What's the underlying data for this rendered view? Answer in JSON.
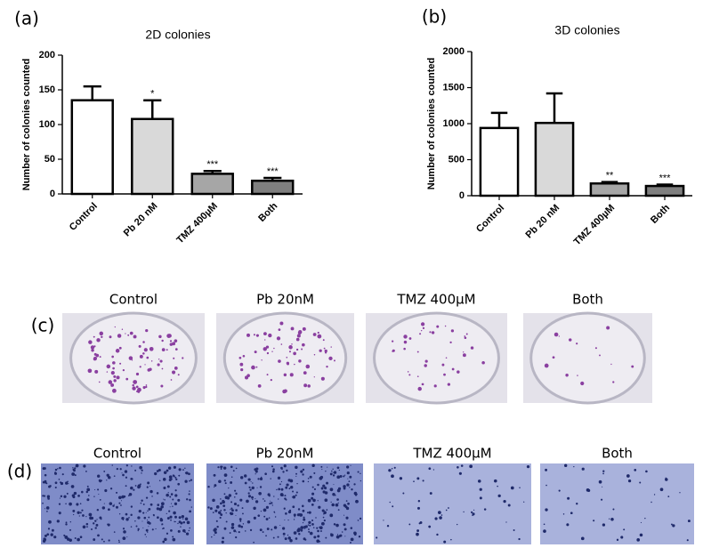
{
  "chart_data": [
    {
      "type": "bar",
      "label": "(a)",
      "title": "2D colonies",
      "y_label": "Number of colonies counted",
      "categories": [
        "Control",
        "Pb 20 nM",
        "TMZ 400µM",
        "Both"
      ],
      "values": [
        135,
        108,
        29,
        19
      ],
      "errors": [
        20,
        27,
        4,
        4
      ],
      "annotations": [
        null,
        "*",
        "***",
        "***"
      ],
      "colors": [
        "#ffffff",
        "#d9d9d9",
        "#a6a6a6",
        "#7f7f7f"
      ],
      "ylim": [
        0,
        200
      ],
      "yticks": [
        0,
        50,
        100,
        150,
        200
      ]
    },
    {
      "type": "bar",
      "label": "(b)",
      "title": "3D colonies",
      "y_label": "Number of colonies counted",
      "categories": [
        "Control",
        "Pb 20 nM",
        "TMZ 400µM",
        "Both"
      ],
      "values": [
        940,
        1010,
        170,
        135
      ],
      "errors": [
        210,
        410,
        20,
        20
      ],
      "annotations": [
        null,
        null,
        "**",
        "***"
      ],
      "colors": [
        "#ffffff",
        "#d9d9d9",
        "#a6a6a6",
        "#7f7f7f"
      ],
      "ylim": [
        0,
        2000
      ],
      "yticks": [
        0,
        500,
        1000,
        1500,
        2000
      ]
    }
  ],
  "photo_panels": [
    {
      "label": "(c)",
      "captions": [
        "Control",
        "Pb 20nM",
        "TMZ 400µM",
        "Both"
      ]
    },
    {
      "label": "(d)",
      "captions": [
        "Control",
        "Pb 20nM",
        "TMZ 400µM",
        "Both"
      ]
    }
  ]
}
